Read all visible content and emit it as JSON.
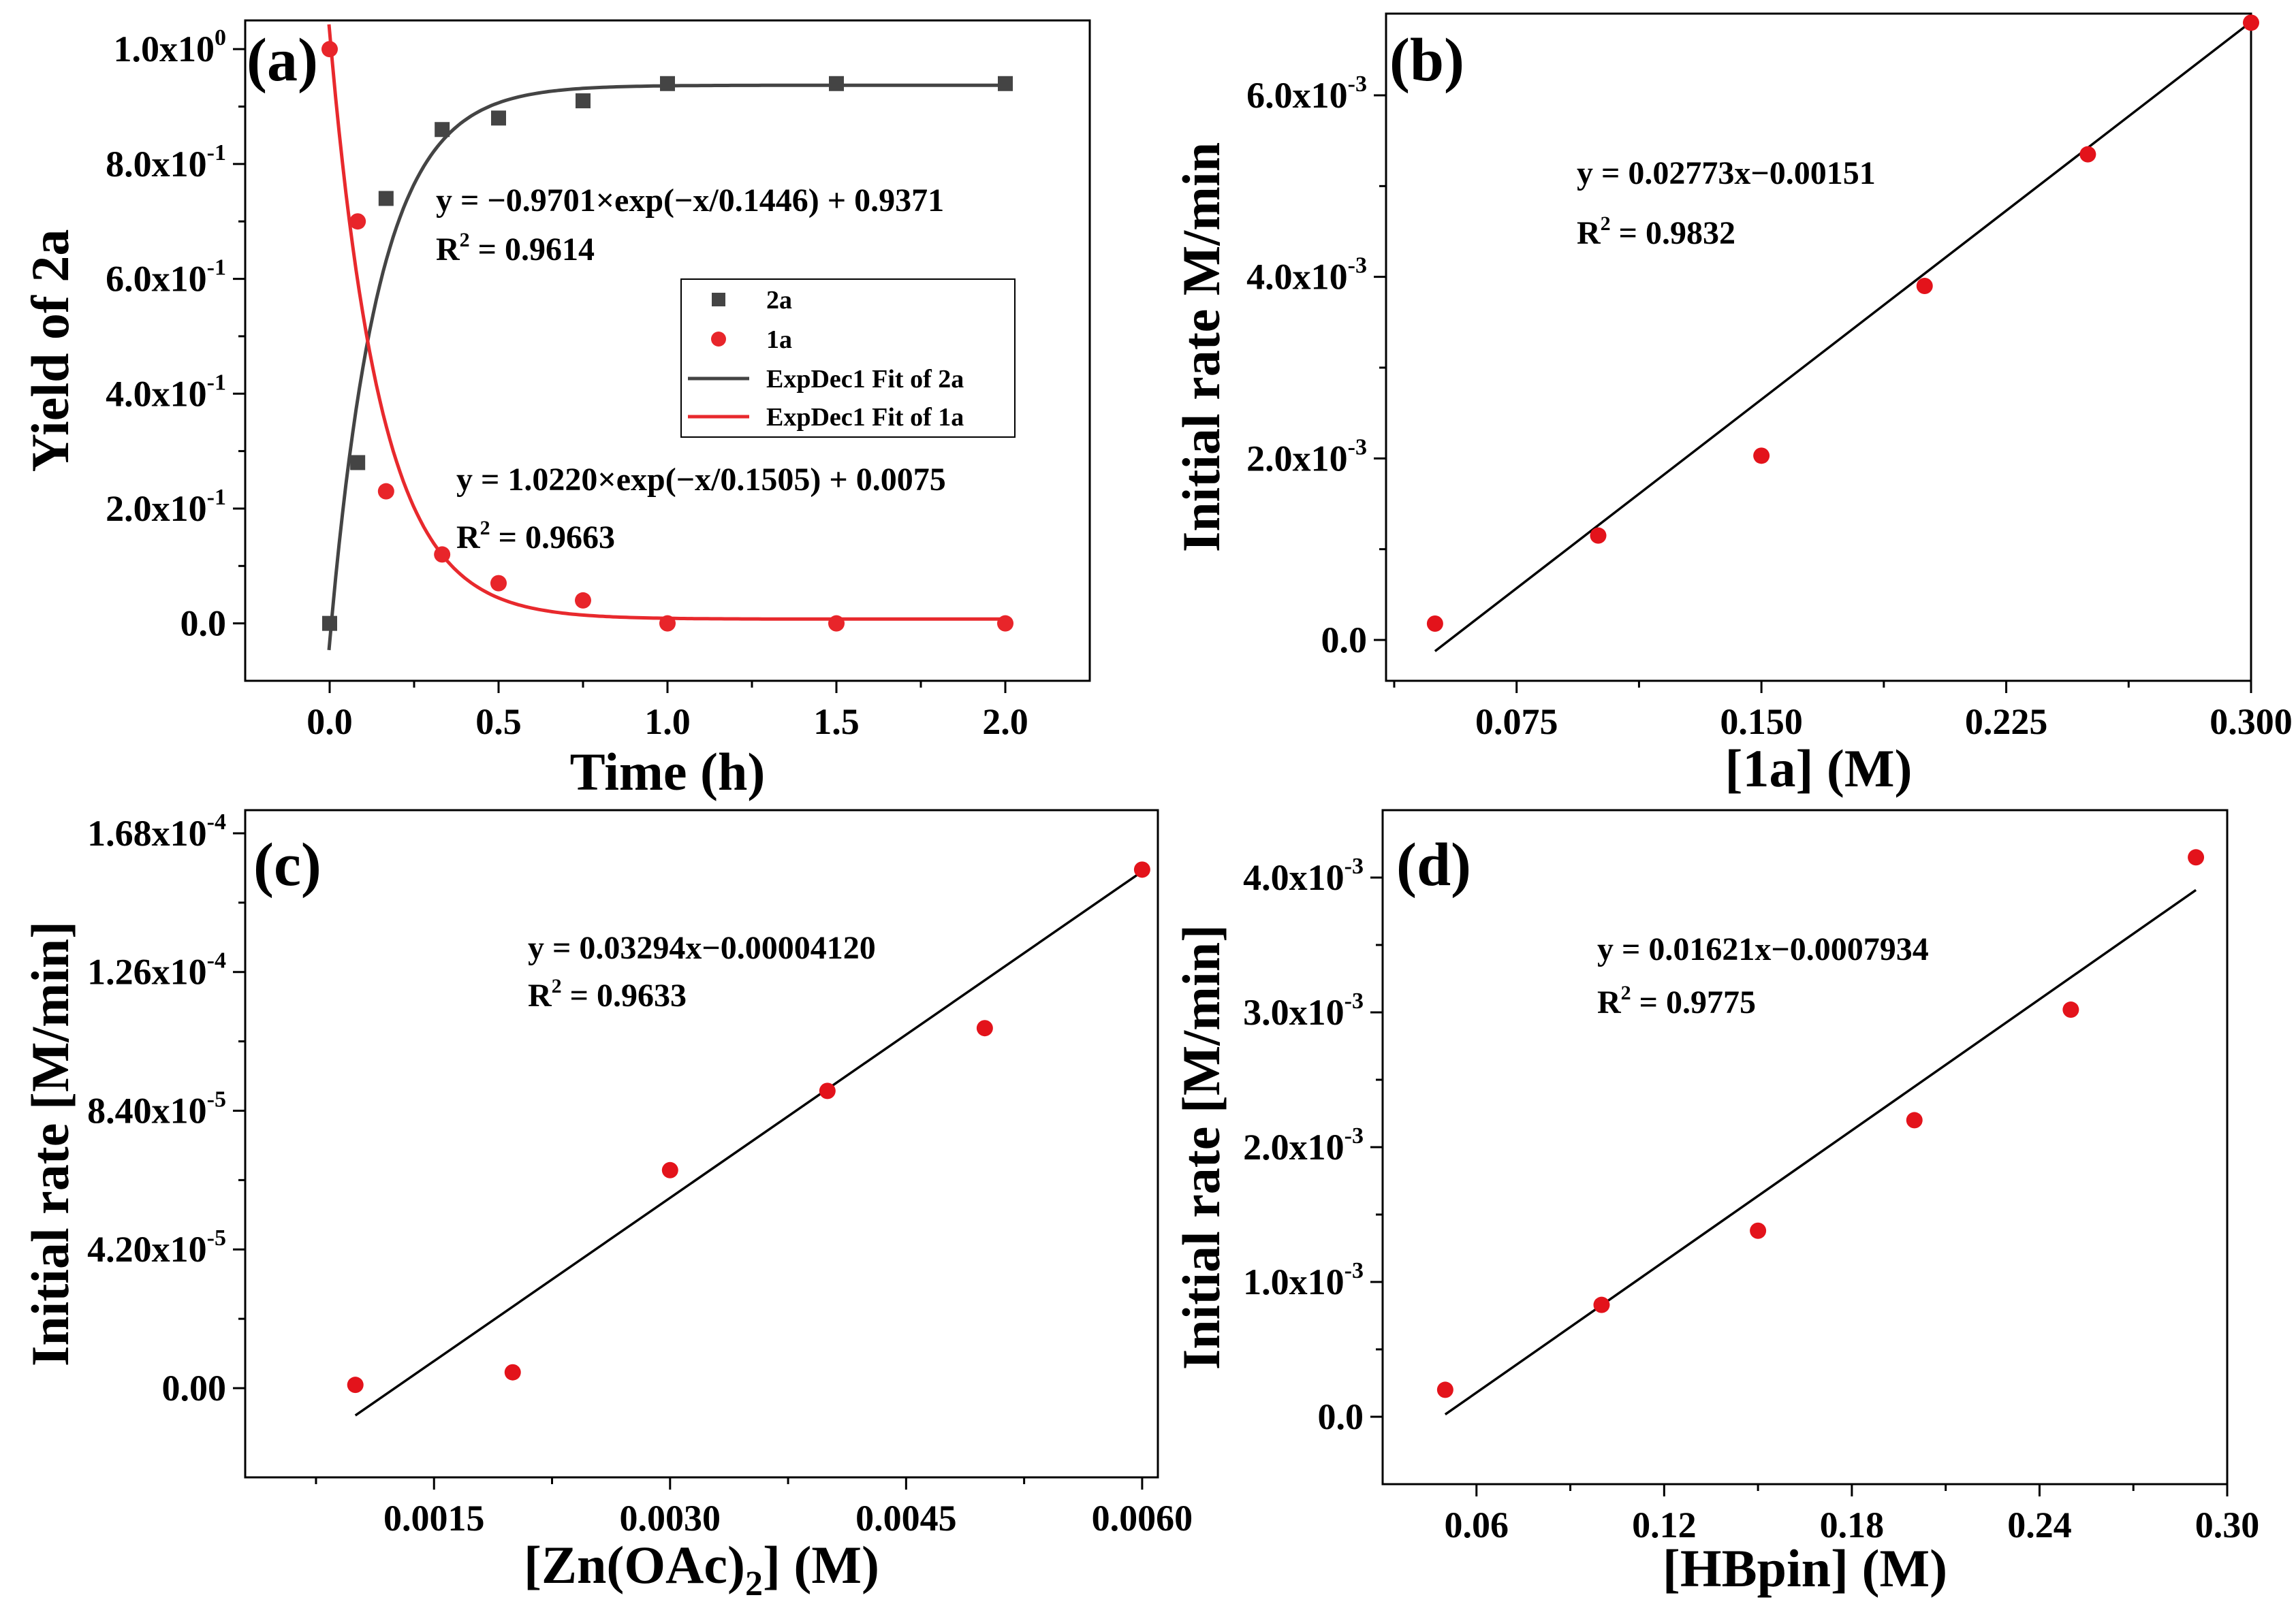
{
  "colors": {
    "red": "#e8252a",
    "dark": "#444444",
    "fit_red": "#e8292d",
    "fit_dark": "#444444",
    "marker_red": "#e3131b"
  },
  "chart_data": [
    {
      "panel": "(a)",
      "type": "scatter",
      "xlabel": "Time (h)",
      "ylabel": "Yield of 2a",
      "xlim": [
        -0.25,
        2.25
      ],
      "ylim": [
        -0.1,
        1.05
      ],
      "xticks": [
        0.0,
        0.5,
        1.0,
        1.5,
        2.0
      ],
      "xtick_labels": [
        "0.0",
        "0.5",
        "1.0",
        "1.5",
        "2.0"
      ],
      "yticks": [
        0.0,
        0.2,
        0.4,
        0.6,
        0.8,
        1.0
      ],
      "ytick_mantissa": [
        "0.0",
        "2.0x10",
        "4.0x10",
        "6.0x10",
        "8.0x10",
        "1.0x10"
      ],
      "ytick_exponent": [
        "",
        "-1",
        "-1",
        "-1",
        "-1",
        "0"
      ],
      "series": [
        {
          "name": "2a",
          "marker": "square",
          "color": "#444444",
          "x": [
            0,
            0.083,
            0.167,
            0.333,
            0.5,
            0.75,
            1.0,
            1.5,
            2.0
          ],
          "y": [
            0,
            0.28,
            0.74,
            0.86,
            0.88,
            0.91,
            0.94,
            0.94,
            0.94
          ]
        },
        {
          "name": "1a",
          "marker": "circle",
          "color": "#e8252a",
          "x": [
            0,
            0.083,
            0.167,
            0.333,
            0.5,
            0.75,
            1.0,
            1.5,
            2.0
          ],
          "y": [
            1.0,
            0.7,
            0.23,
            0.12,
            0.07,
            0.04,
            0.0,
            0.0,
            0.0
          ]
        }
      ],
      "fits": [
        {
          "name": "ExpDec1 Fit of 2a",
          "color": "#444444",
          "A": -0.9701,
          "t": 0.1446,
          "y0": 0.9371
        },
        {
          "name": "ExpDec1 Fit of 1a",
          "color": "#e8292d",
          "A": 1.022,
          "t": 0.1505,
          "y0": 0.0075
        }
      ],
      "legend": [
        "2a",
        "1a",
        "ExpDec1 Fit of 2a",
        "ExpDec1 Fit of 1a"
      ],
      "equations": [
        {
          "eq": "y = −0.9701×exp(−x/0.1446) + 0.9371",
          "r2_prefix": "R",
          "r2_value": " = 0.9614"
        },
        {
          "eq": "y = 1.0220×exp(−x/0.1505) + 0.0075",
          "r2_prefix": "R",
          "r2_value": " = 0.9663"
        }
      ]
    },
    {
      "panel": "(b)",
      "type": "scatter",
      "xlabel": "[1a] (M)",
      "ylabel": "Initial rate M/min",
      "xlim": [
        0.035,
        0.3
      ],
      "ylim": [
        -0.00045,
        0.0069
      ],
      "xticks": [
        0.075,
        0.15,
        0.225,
        0.3
      ],
      "xtick_labels": [
        "0.075",
        "0.150",
        "0.225",
        "0.300"
      ],
      "yticks": [
        0.0,
        0.002,
        0.004,
        0.006
      ],
      "ytick_mantissa": [
        "0.0",
        "2.0x10",
        "4.0x10",
        "6.0x10"
      ],
      "ytick_exponent": [
        "",
        "-3",
        "-3",
        "-3"
      ],
      "points": {
        "x": [
          0.05,
          0.1,
          0.15,
          0.2,
          0.25,
          0.3
        ],
        "y": [
          0.00018,
          0.00115,
          0.00203,
          0.0039,
          0.00535,
          0.0068
        ]
      },
      "fit": {
        "slope": 0.02773,
        "intercept": -0.00151,
        "x_range": [
          0.05,
          0.3
        ]
      },
      "equation": "y = 0.02773x−0.00151",
      "r2_prefix": "R",
      "r2_value": " = 0.9832"
    },
    {
      "panel": "(c)",
      "type": "scatter",
      "xlabel_main": "[Zn(OAc)",
      "xlabel_sub": "2",
      "xlabel_tail": "] (M)",
      "ylabel": "Initial rate [M/min]",
      "xlim": [
        0.0003,
        0.0061
      ],
      "ylim": [
        -2.7e-05,
        0.000175
      ],
      "xticks": [
        0.0015,
        0.003,
        0.0045,
        0.006
      ],
      "xtick_labels": [
        "0.0015",
        "0.0030",
        "0.0045",
        "0.0060"
      ],
      "yticks": [
        0.0,
        4.2e-05,
        8.4e-05,
        0.000126,
        0.000168
      ],
      "ytick_mantissa": [
        "0.00",
        "4.20x10",
        "8.40x10",
        "1.26x10",
        "1.68x10"
      ],
      "ytick_exponent": [
        "",
        "-5",
        "-5",
        "-4",
        "-4"
      ],
      "points": {
        "x": [
          0.001,
          0.002,
          0.003,
          0.004,
          0.005,
          0.006
        ],
        "y": [
          1e-06,
          4.8e-06,
          6.6e-05,
          9e-05,
          0.000109,
          0.000157
        ]
      },
      "fit": {
        "slope": 0.03294,
        "intercept": -4.12e-05,
        "x_range": [
          0.001,
          0.006
        ]
      },
      "equation": "y = 0.03294x−0.00004120",
      "r2_prefix": "R",
      "r2_value": " = 0.9633"
    },
    {
      "panel": "(d)",
      "type": "scatter",
      "xlabel": "[HBpin] (M)",
      "ylabel": "Initial rate [M/min]",
      "xlim": [
        0.03,
        0.3
      ],
      "ylim": [
        -0.0005,
        0.0045
      ],
      "xticks": [
        0.06,
        0.12,
        0.18,
        0.24,
        0.3
      ],
      "xtick_labels": [
        "0.06",
        "0.12",
        "0.18",
        "0.24",
        "0.30"
      ],
      "yticks": [
        0.0,
        0.001,
        0.002,
        0.003,
        0.004
      ],
      "ytick_mantissa": [
        "0.0",
        "1.0x10",
        "2.0x10",
        "3.0x10",
        "4.0x10"
      ],
      "ytick_exponent": [
        "",
        "-3",
        "-3",
        "-3",
        "-3"
      ],
      "points": {
        "x": [
          0.05,
          0.1,
          0.15,
          0.2,
          0.25,
          0.29
        ],
        "y": [
          0.0002,
          0.00083,
          0.00138,
          0.0022,
          0.00302,
          0.00415
        ]
      },
      "fit": {
        "slope": 0.01621,
        "intercept": -0.0007934,
        "x_range": [
          0.05,
          0.29
        ]
      },
      "equation": "y = 0.01621x−0.0007934",
      "r2_prefix": "R",
      "r2_value": " = 0.9775"
    }
  ]
}
